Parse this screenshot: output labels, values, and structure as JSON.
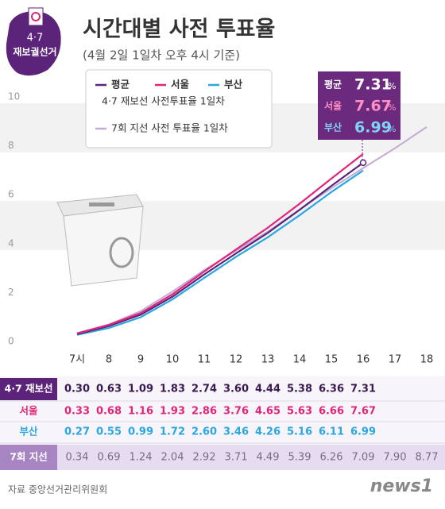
{
  "logo": {
    "line1": "4·7",
    "line2": "재보궐선거"
  },
  "chart_data": {
    "type": "line",
    "title": "시간대별 사전 투표율",
    "subtitle": "(4월 2일 1일차 오후 4시 기준)",
    "categories": [
      "7시",
      "8",
      "9",
      "10",
      "11",
      "12",
      "13",
      "14",
      "15",
      "16",
      "17",
      "18"
    ],
    "ylim": [
      0,
      10
    ],
    "yticks": [
      0,
      2,
      4,
      6,
      8,
      10
    ],
    "legend_group_label": "4·7 재보선 사전투표율 1일차",
    "series": [
      {
        "name": "평균",
        "table_label": "4·7 재보선",
        "color": "#5b2379",
        "values": [
          0.3,
          0.63,
          1.09,
          1.83,
          2.74,
          3.6,
          4.44,
          5.38,
          6.36,
          7.31,
          null,
          null
        ],
        "value_labels": [
          "0.30",
          "0.63",
          "1.09",
          "1.83",
          "2.74",
          "3.60",
          "4.44",
          "5.38",
          "6.36",
          "7.31",
          null,
          null
        ]
      },
      {
        "name": "서울",
        "table_label": "서울",
        "color": "#e0267a",
        "values": [
          0.33,
          0.68,
          1.16,
          1.93,
          2.86,
          3.76,
          4.65,
          5.63,
          6.66,
          7.67,
          null,
          null
        ],
        "value_labels": [
          "0.33",
          "0.68",
          "1.16",
          "1.93",
          "2.86",
          "3.76",
          "4.65",
          "5.63",
          "6.66",
          "7.67",
          null,
          null
        ]
      },
      {
        "name": "부산",
        "table_label": "부산",
        "color": "#2aa7e0",
        "values": [
          0.27,
          0.55,
          0.99,
          1.72,
          2.6,
          3.46,
          4.26,
          5.16,
          6.11,
          6.99,
          null,
          null
        ],
        "value_labels": [
          "0.27",
          "0.55",
          "0.99",
          "1.72",
          "2.60",
          "3.46",
          "4.26",
          "5.16",
          "6.11",
          "6.99",
          null,
          null
        ]
      },
      {
        "name": "7회 지선 사전 투표율 1일차",
        "table_label": "7회 지선",
        "color": "#c3a9d6",
        "values": [
          0.34,
          0.69,
          1.24,
          2.04,
          2.92,
          3.71,
          4.49,
          5.39,
          6.26,
          7.09,
          7.9,
          8.77
        ],
        "value_labels": [
          "0.34",
          "0.69",
          "1.24",
          "2.04",
          "2.92",
          "3.71",
          "4.49",
          "5.39",
          "6.26",
          "7.09",
          "7.90",
          "8.77"
        ]
      }
    ],
    "callout": [
      {
        "label": "평균",
        "value": 7.31,
        "color": "#ffffff"
      },
      {
        "label": "서울",
        "value": 7.67,
        "color": "#ff8fc4"
      },
      {
        "label": "부산",
        "value": 6.99,
        "color": "#7fd3f7"
      }
    ],
    "callout_unit": "%",
    "source": "자료 중앙선거관리위원회",
    "brand": "news1"
  }
}
